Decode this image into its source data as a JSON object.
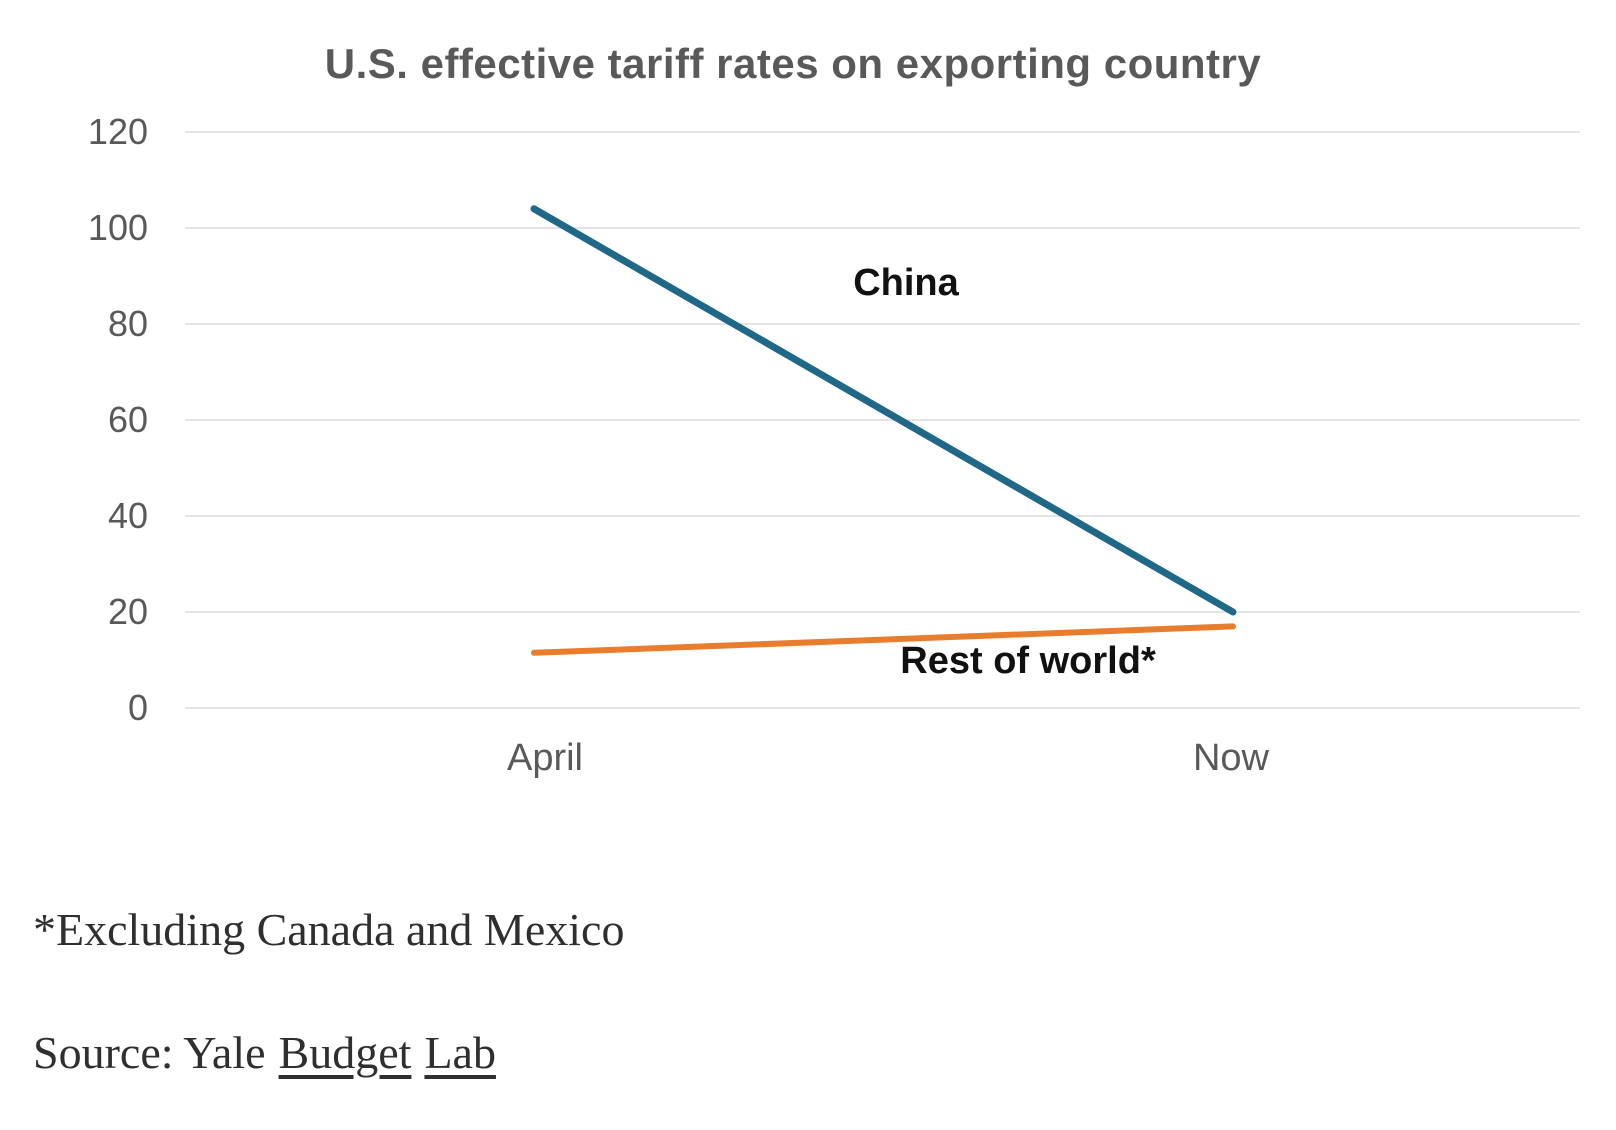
{
  "title": "U.S. effective tariff rates on exporting country",
  "chart_data": {
    "type": "line",
    "x_categories": [
      "April",
      "Now"
    ],
    "series": [
      {
        "name": "China",
        "values": [
          104,
          20
        ],
        "color": "#1f6888"
      },
      {
        "name": "Rest of world*",
        "values": [
          11.5,
          17
        ],
        "color": "#e87d2e"
      }
    ],
    "ylim": [
      0,
      120
    ],
    "y_ticks": [
      120,
      100,
      80,
      60,
      40,
      20,
      0
    ],
    "grid": "horizontal-only",
    "legend": "inline-annotations-on-plot",
    "title": "U.S. effective tariff rates on exporting country",
    "xlabel": "",
    "ylabel": ""
  },
  "axis": {
    "y_tick_labels": [
      "120",
      "100",
      "80",
      "60",
      "40",
      "20",
      "0"
    ],
    "x_labels": [
      "April",
      "Now"
    ]
  },
  "annotations": {
    "china_label": "China",
    "rest_of_world_label": "Rest of world*"
  },
  "footer": {
    "footnote": "*Excluding Canada and Mexico",
    "source_prefix": "Source: Yale",
    "source_link_words": [
      "Budget",
      "Lab"
    ]
  },
  "colors": {
    "china_line": "#1f6888",
    "rest_of_world_line": "#e87d2e",
    "title_text": "#595959",
    "axis_text": "#595959",
    "annotation_text": "#111111",
    "gridline": "#e4e4e4",
    "serif_text": "#2f2f2f",
    "background": "#ffffff"
  }
}
